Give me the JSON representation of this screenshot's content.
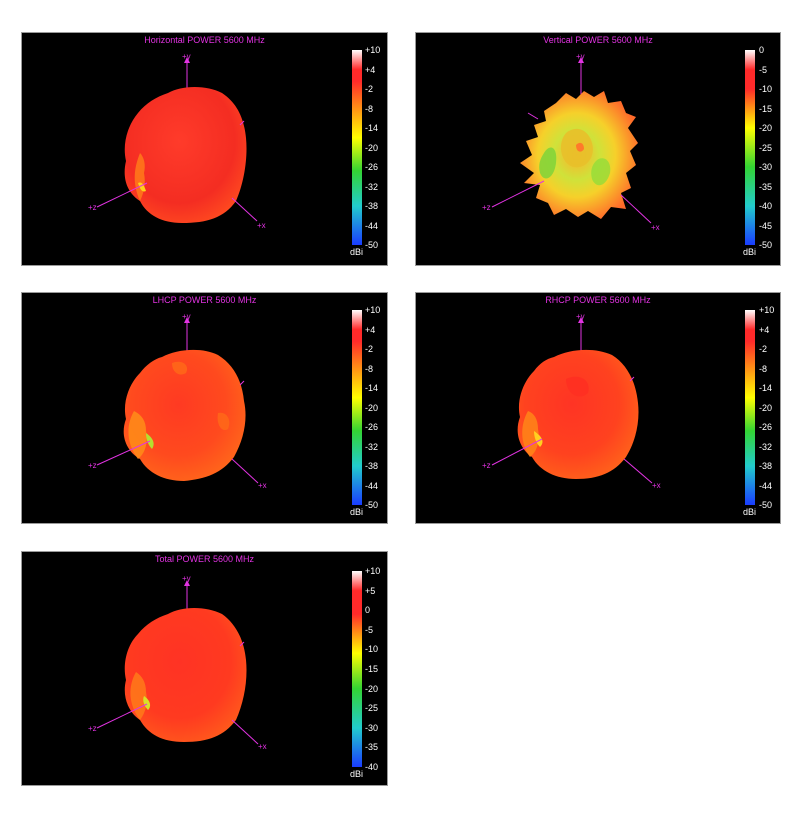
{
  "colors": {
    "accent_title": "#e233e2",
    "axis": "#e233e2",
    "colormap": [
      "#ffffff",
      "#ff2a2a",
      "#ffff00",
      "#33d433",
      "#22cccc",
      "#1a3cff"
    ]
  },
  "chart_data": [
    {
      "type": "other",
      "id": "horizontal",
      "title": "Horizontal POWER 5600  MHz",
      "colorbar": {
        "ticks": [
          "+10",
          "+4",
          "-2",
          "-8",
          "-14",
          "-20",
          "-26",
          "-32",
          "-38",
          "-44",
          "-50"
        ],
        "unit": "dBi",
        "range": [
          -50,
          10
        ]
      },
      "axes": [
        "+y",
        "+z",
        "+x"
      ],
      "pattern_level_dbi": -2
    },
    {
      "type": "other",
      "id": "vertical",
      "title": "Vertical POWER 5600  MHz",
      "colorbar": {
        "ticks": [
          "0",
          "-5",
          "-10",
          "-15",
          "-20",
          "-25",
          "-30",
          "-35",
          "-40",
          "-45",
          "-50"
        ],
        "unit": "dBi",
        "range": [
          -50,
          0
        ]
      },
      "axes": [
        "+y",
        "+z",
        "+x"
      ],
      "pattern_level_dbi": -15
    },
    {
      "type": "other",
      "id": "lhcp",
      "title": "LHCP POWER 5600  MHz",
      "colorbar": {
        "ticks": [
          "+10",
          "+4",
          "-2",
          "-8",
          "-14",
          "-20",
          "-26",
          "-32",
          "-38",
          "-44",
          "-50"
        ],
        "unit": "dBi",
        "range": [
          -50,
          10
        ]
      },
      "axes": [
        "+y",
        "+z",
        "+x"
      ],
      "pattern_level_dbi": -5
    },
    {
      "type": "other",
      "id": "rhcp",
      "title": "RHCP POWER 5600  MHz",
      "colorbar": {
        "ticks": [
          "+10",
          "+4",
          "-2",
          "-8",
          "-14",
          "-20",
          "-26",
          "-32",
          "-38",
          "-44",
          "-50"
        ],
        "unit": "dBi",
        "range": [
          -50,
          10
        ]
      },
      "axes": [
        "+y",
        "+z",
        "+x"
      ],
      "pattern_level_dbi": -4
    },
    {
      "type": "other",
      "id": "total",
      "title": "Total POWER 5600  MHz",
      "colorbar": {
        "ticks": [
          "+10",
          "+5",
          "0",
          "-5",
          "-10",
          "-15",
          "-20",
          "-25",
          "-30",
          "-35",
          "-40"
        ],
        "unit": "dBi",
        "range": [
          -40,
          10
        ]
      },
      "axes": [
        "+y",
        "+z",
        "+x"
      ],
      "pattern_level_dbi": 0
    }
  ]
}
